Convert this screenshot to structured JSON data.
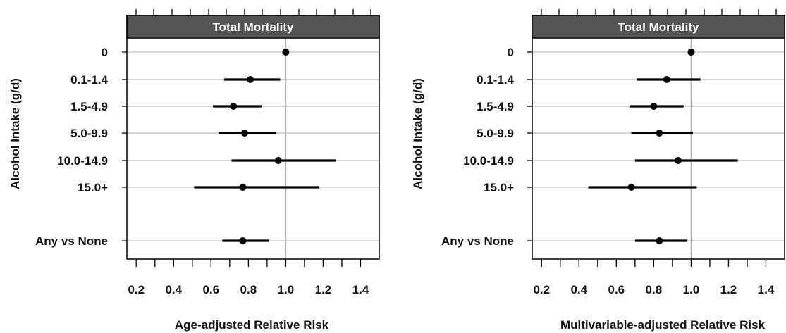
{
  "chart_data": [
    {
      "type": "forest",
      "title": "Total Mortality",
      "xlabel": "Age-adjusted Relative Risk",
      "ylabel": "Alcohol Intake (g/d)",
      "xlim": [
        0.15,
        1.5
      ],
      "xticks": [
        "0.2",
        "0.4",
        "0.6",
        "0.8",
        "1.0",
        "1.2",
        "1.4"
      ],
      "reference_line": 1.0,
      "grid": "horizontal",
      "categories": [
        "0",
        "0.1-1.4",
        "1.5-4.9",
        "5.0-9.9",
        "10.0-14.9",
        "15.0+",
        "Any vs None"
      ],
      "estimates": [
        1.0,
        0.81,
        0.72,
        0.78,
        0.96,
        0.77,
        0.77
      ],
      "lower": [
        1.0,
        0.67,
        0.61,
        0.64,
        0.71,
        0.51,
        0.66
      ],
      "upper": [
        1.0,
        0.97,
        0.87,
        0.95,
        1.27,
        1.18,
        0.91
      ]
    },
    {
      "type": "forest",
      "title": "Total Mortality",
      "xlabel": "Multivariable-adjusted Relative Risk",
      "ylabel": "Alcohol Intake (g/d)",
      "xlim": [
        0.15,
        1.5
      ],
      "xticks": [
        "0.2",
        "0.4",
        "0.6",
        "0.8",
        "1.0",
        "1.2",
        "1.4"
      ],
      "reference_line": 1.0,
      "grid": "horizontal",
      "categories": [
        "0",
        "0.1-1.4",
        "1.5-4.9",
        "5.0-9.9",
        "10.0-14.9",
        "15.0+",
        "Any vs None"
      ],
      "estimates": [
        1.0,
        0.87,
        0.8,
        0.83,
        0.93,
        0.68,
        0.83
      ],
      "lower": [
        1.0,
        0.71,
        0.67,
        0.68,
        0.7,
        0.45,
        0.7
      ],
      "upper": [
        1.0,
        1.05,
        0.96,
        1.01,
        1.25,
        1.03,
        0.98
      ]
    }
  ]
}
